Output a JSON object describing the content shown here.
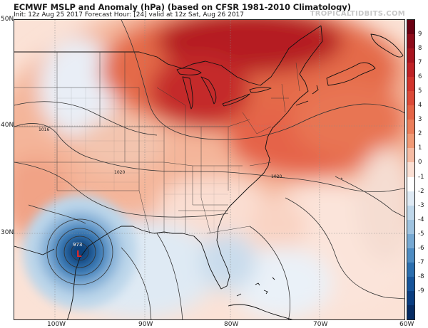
{
  "header": {
    "title": "ECMWF MSLP and Anomaly (hPa) (based on CFSR 1981-2010 Climatology)",
    "subtitle": "Init: 12z Aug 25 2017   Forecast Hour: [24]   valid at 12z Sat, Aug 26 2017",
    "watermark": "TROPICALTIDBITS.COM"
  },
  "map": {
    "lat_labels": [
      "50N",
      "40N",
      "30N"
    ],
    "lon_labels": [
      "100W",
      "90W",
      "80W",
      "70W",
      "60W"
    ],
    "isobar_labels": [
      "1016",
      "1020",
      "1020"
    ],
    "low_center": {
      "pressure": "973",
      "symbol": "L"
    }
  },
  "colorbar": {
    "ticks": [
      "9",
      "8",
      "7",
      "6",
      "5",
      "4",
      "3",
      "2",
      "1",
      "0",
      "-1",
      "-2",
      "-3",
      "-4",
      "-5",
      "-6",
      "-7",
      "-8",
      "-9"
    ],
    "colors": [
      "#6b0012",
      "#8e0b1a",
      "#a8141f",
      "#bf2226",
      "#d1342d",
      "#dc4a38",
      "#e56446",
      "#ec7e5a",
      "#f19a76",
      "#f6bca4",
      "#fbe0d4",
      "#ffffff",
      "#dfeaf4",
      "#bfd7ea",
      "#9fc3e0",
      "#77a9d3",
      "#4e8cc2",
      "#2b6eae",
      "#16549a",
      "#0a3d80",
      "#062b63"
    ]
  }
}
